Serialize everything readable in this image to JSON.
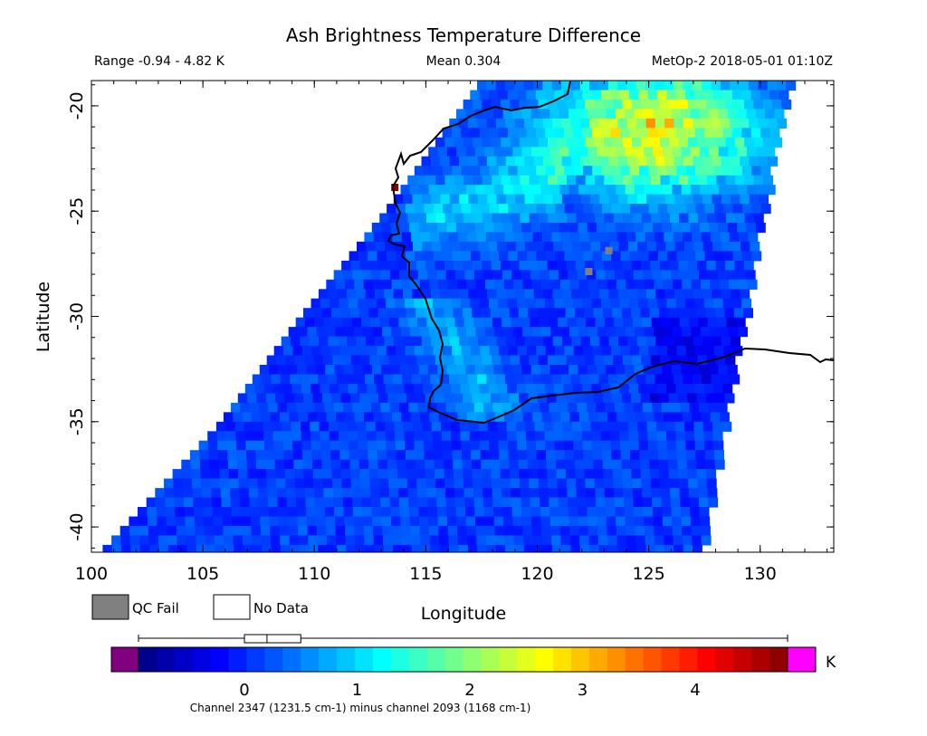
{
  "chart_data": {
    "type": "heatmap",
    "title": "Ash Brightness Temperature Difference",
    "subtitle_left": "Range -0.94 - 4.82 K",
    "subtitle_center": "Mean 0.304",
    "subtitle_right": "MetOp-2 2018-05-01 01:10Z",
    "xlabel": "Longitude",
    "ylabel": "Latitude",
    "xlim": [
      100,
      133.3
    ],
    "ylim": [
      -41.2,
      -18.8
    ],
    "x_ticks": [
      100,
      105,
      110,
      115,
      120,
      125,
      130
    ],
    "y_ticks": [
      -20,
      -25,
      -30,
      -35,
      -40
    ],
    "swath_edges": {
      "west": [
        [
          -18.8,
          117.3
        ],
        [
          -25,
          113.0
        ],
        [
          -30,
          109.2
        ],
        [
          -35,
          105.6
        ],
        [
          -41.2,
          100.2
        ]
      ],
      "east": [
        [
          -18.8,
          131.3
        ],
        [
          -25,
          130.0
        ],
        [
          -30,
          129.2
        ],
        [
          -35,
          128.3
        ],
        [
          -41.2,
          127.3
        ]
      ]
    },
    "features": [
      {
        "name": "elevated BTD region",
        "lat": -21,
        "lon": 125,
        "value": 3.2
      },
      {
        "name": "hot pixel",
        "lat": -24,
        "lon": 113.7,
        "value": 4.8
      },
      {
        "name": "QC fail pixels",
        "lat": -27,
        "lon": 123.3,
        "value": null
      },
      {
        "name": "QC fail pixels",
        "lat": -28,
        "lon": 122.4,
        "value": null
      }
    ],
    "colorbar": {
      "min": -0.94,
      "max": 4.82,
      "ticks": [
        0,
        1,
        2,
        3,
        4
      ],
      "unit": "K",
      "under_color": "#800080",
      "over_color": "#ff00ff",
      "box": {
        "q1": 0.0,
        "median": 0.2,
        "q3": 0.5
      },
      "caption": "Channel 2347 (1231.5 cm-1) minus channel 2093 (1168 cm-1)"
    },
    "legend": [
      {
        "label": "QC Fail",
        "color": "#808080"
      },
      {
        "label": "No Data",
        "color": "#ffffff"
      }
    ]
  }
}
